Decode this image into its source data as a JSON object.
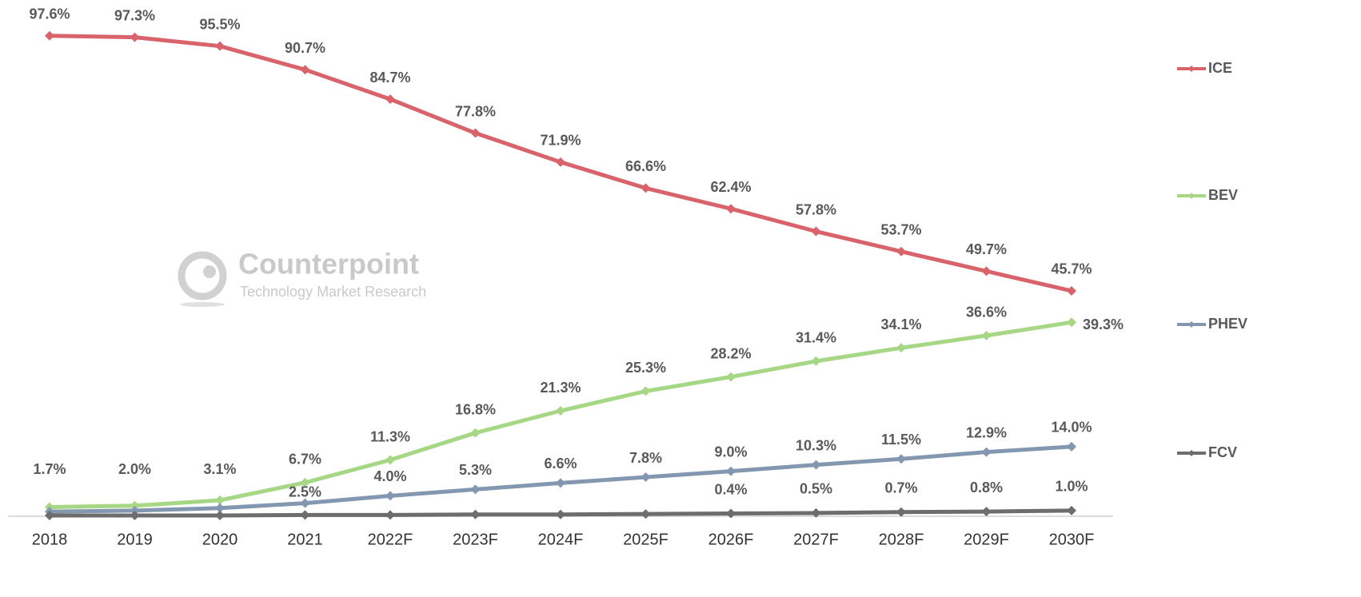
{
  "chart_data": {
    "type": "line",
    "watermark": {
      "brand": "Counterpoint",
      "tagline": "Technology Market Research"
    },
    "categories": [
      "2018",
      "2019",
      "2020",
      "2021",
      "2022F",
      "2023F",
      "2024F",
      "2025F",
      "2026F",
      "2027F",
      "2028F",
      "2029F",
      "2030F"
    ],
    "ylim": [
      0,
      100
    ],
    "series": [
      {
        "name": "ICE",
        "color": "#d9636b",
        "values": [
          97.6,
          97.3,
          95.5,
          90.7,
          84.7,
          77.8,
          71.9,
          66.6,
          62.4,
          57.8,
          53.7,
          49.7,
          45.7
        ],
        "value_labels": [
          "97.6%",
          "97.3%",
          "95.5%",
          "90.7%",
          "84.7%",
          "77.8%",
          "71.9%",
          "66.6%",
          "62.4%",
          "57.8%",
          "53.7%",
          "49.7%",
          "45.7%"
        ]
      },
      {
        "name": "BEV",
        "color": "#a6d785",
        "values": [
          1.7,
          2.0,
          3.1,
          6.7,
          11.3,
          16.8,
          21.3,
          25.3,
          28.2,
          31.4,
          34.1,
          36.6,
          39.3
        ],
        "value_labels": [
          "1.7%",
          "2.0%",
          "3.1%",
          "6.7%",
          "11.3%",
          "16.8%",
          "21.3%",
          "25.3%",
          "28.2%",
          "31.4%",
          "34.1%",
          "36.6%",
          "39.3%"
        ]
      },
      {
        "name": "PHEV",
        "color": "#8497b0",
        "values": [
          0.8,
          1.0,
          1.5,
          2.5,
          4.0,
          5.3,
          6.6,
          7.8,
          9.0,
          10.3,
          11.5,
          12.9,
          14.0
        ],
        "value_labels": [
          null,
          null,
          null,
          "2.5%",
          "4.0%",
          "5.3%",
          "6.6%",
          "7.8%",
          "9.0%",
          "10.3%",
          "11.5%",
          "12.9%",
          "14.0%"
        ]
      },
      {
        "name": "FCV",
        "color": "#6d6d6d",
        "values": [
          0.0,
          0.0,
          0.0,
          0.1,
          0.1,
          0.2,
          0.2,
          0.3,
          0.4,
          0.5,
          0.7,
          0.8,
          1.0
        ],
        "value_labels": [
          null,
          null,
          null,
          null,
          null,
          null,
          null,
          null,
          "0.4%",
          "0.5%",
          "0.7%",
          "0.8%",
          "1.0%"
        ]
      }
    ]
  }
}
